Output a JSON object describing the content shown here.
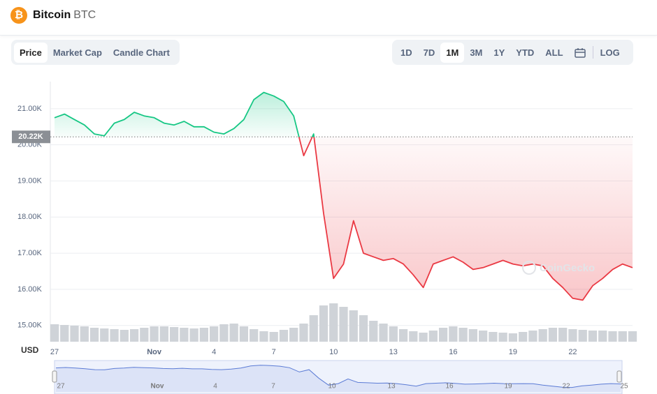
{
  "header": {
    "icon": "₿",
    "name": "Bitcoin",
    "symbol": "BTC"
  },
  "tabs": [
    "Price",
    "Market Cap",
    "Candle Chart"
  ],
  "ranges": [
    "1D",
    "7D",
    "1M",
    "3M",
    "1Y",
    "YTD",
    "ALL"
  ],
  "log": "LOG",
  "chart_data": {
    "type": "line",
    "y_label": "USD",
    "watermark": "CoinGecko",
    "categories": [
      "27",
      null,
      null,
      null,
      null,
      null,
      null,
      null,
      null,
      null,
      "Nov",
      null,
      null,
      null,
      null,
      null,
      "4",
      null,
      null,
      null,
      null,
      null,
      "7",
      null,
      null,
      null,
      null,
      null,
      "10",
      null,
      null,
      null,
      null,
      null,
      "13",
      null,
      null,
      null,
      null,
      null,
      "16",
      null,
      null,
      null,
      null,
      null,
      "19",
      null,
      null,
      null,
      null,
      null,
      "22",
      null,
      null,
      null,
      null,
      null,
      null
    ],
    "values": [
      20750,
      20850,
      20700,
      20550,
      20300,
      20250,
      20600,
      20700,
      20900,
      20800,
      20750,
      20600,
      20550,
      20650,
      20500,
      20500,
      20350,
      20300,
      20450,
      20700,
      21250,
      21450,
      21350,
      21200,
      20800,
      19700,
      20300,
      18100,
      16300,
      16700,
      17900,
      17000,
      16900,
      16800,
      16850,
      16700,
      16400,
      16050,
      16700,
      16800,
      16900,
      16750,
      16550,
      16600,
      16700,
      16800,
      16700,
      16650,
      16700,
      16650,
      16300,
      16050,
      15750,
      15700,
      16100,
      16300,
      16550,
      16700,
      16600
    ],
    "volume": [
      25,
      24,
      23,
      22,
      20,
      19,
      18,
      17,
      18,
      20,
      22,
      22,
      21,
      20,
      19,
      20,
      22,
      25,
      26,
      22,
      18,
      15,
      14,
      17,
      20,
      26,
      38,
      52,
      55,
      50,
      45,
      38,
      30,
      26,
      22,
      18,
      15,
      13,
      16,
      20,
      22,
      20,
      18,
      16,
      14,
      13,
      12,
      14,
      16,
      18,
      20,
      20,
      18,
      17,
      16,
      16,
      15,
      15,
      15
    ],
    "colors": {
      "above": "#16c784",
      "below": "#ea3943",
      "volume": "#cfd3d8",
      "navigator": "#5b7bd5"
    },
    "baseline": {
      "value": 20220,
      "label": "20.22K"
    },
    "ylim": [
      14550,
      21750
    ],
    "yticks": [
      {
        "value": 15000,
        "label": "15.00K"
      },
      {
        "value": 16000,
        "label": "16.00K"
      },
      {
        "value": 17000,
        "label": "17.00K"
      },
      {
        "value": 18000,
        "label": "18.00K"
      },
      {
        "value": 19000,
        "label": "19.00K"
      },
      {
        "value": 20000,
        "label": "20.00K"
      },
      {
        "value": 21000,
        "label": "21.00K"
      }
    ],
    "y2lim": [
      0,
      100
    ],
    "grid": true,
    "navigator": {
      "labels": [
        "27",
        "Nov",
        "4",
        "7",
        "10",
        "13",
        "16",
        "19",
        "22",
        "25"
      ]
    }
  }
}
